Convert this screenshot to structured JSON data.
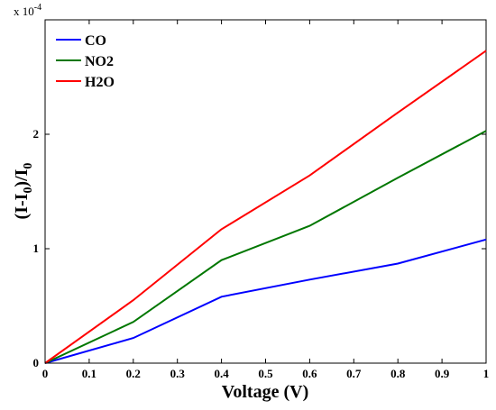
{
  "chart_data": {
    "type": "line",
    "title": "",
    "xlabel": "Voltage (V)",
    "ylabel": {
      "base": "(I-I",
      "sub1": "0",
      "mid": ")/I",
      "sub2": "0"
    },
    "y_multiplier": {
      "base": "x 10",
      "exp": "-4"
    },
    "xlim": [
      0,
      1
    ],
    "ylim": [
      0,
      3.0
    ],
    "x_ticks": [
      {
        "v": 0,
        "label": "0"
      },
      {
        "v": 0.1,
        "label": "0.1"
      },
      {
        "v": 0.2,
        "label": "0.2"
      },
      {
        "v": 0.3,
        "label": "0.3"
      },
      {
        "v": 0.4,
        "label": "0.4"
      },
      {
        "v": 0.5,
        "label": "0.5"
      },
      {
        "v": 0.6,
        "label": "0.6"
      },
      {
        "v": 0.7,
        "label": "0.7"
      },
      {
        "v": 0.8,
        "label": "0.8"
      },
      {
        "v": 0.9,
        "label": "0.9"
      },
      {
        "v": 1,
        "label": "1"
      }
    ],
    "y_ticks": [
      {
        "v": 0,
        "label": "0"
      },
      {
        "v": 1,
        "label": "1"
      },
      {
        "v": 2,
        "label": "2"
      }
    ],
    "grid": false,
    "legend_position": "top-left",
    "x": [
      0,
      0.2,
      0.4,
      0.6,
      0.8,
      1.0
    ],
    "series": [
      {
        "name": "CO",
        "color": "#0000ff",
        "values": [
          0,
          0.22,
          0.58,
          0.73,
          0.87,
          1.08
        ]
      },
      {
        "name": "NO2",
        "color": "#007700",
        "values": [
          0,
          0.36,
          0.9,
          1.2,
          1.62,
          2.03
        ]
      },
      {
        "name": "H2O",
        "color": "#ff0000",
        "values": [
          0,
          0.55,
          1.17,
          1.64,
          2.19,
          2.73
        ]
      }
    ]
  }
}
